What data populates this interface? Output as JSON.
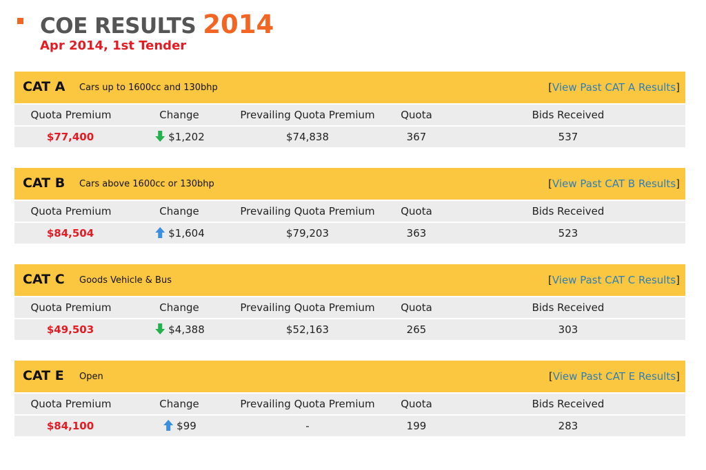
{
  "header": {
    "title_main": "COE RESULTS",
    "title_year": "2014",
    "subtitle": "Apr 2014, 1st Tender"
  },
  "colors": {
    "accent_orange": "#f26522",
    "premium_red": "#e31b23",
    "band_yellow": "#fbc640",
    "row_grey": "#ececec",
    "link_blue": "#2e7fb8",
    "arrow_down_green": "#22b24c",
    "arrow_up_blue": "#3a8fe0"
  },
  "columns": [
    "Quota Premium",
    "Change",
    "Prevailing Quota Premium",
    "Quota",
    "Bids Received"
  ],
  "categories": [
    {
      "name": "CAT A",
      "description": "Cars up to 1600cc and 130bhp",
      "link_open": "[",
      "link_text": "View Past CAT A Results",
      "link_close": "]",
      "quota_premium": "$77,400",
      "change_direction": "down",
      "change_icon": "arrow-down-icon",
      "change": "$1,202",
      "prevailing_quota_premium": "$74,838",
      "quota": "367",
      "bids_received": "537"
    },
    {
      "name": "CAT B",
      "description": "Cars above 1600cc or 130bhp",
      "link_open": "[",
      "link_text": "View Past CAT B Results",
      "link_close": "]",
      "quota_premium": "$84,504",
      "change_direction": "up",
      "change_icon": "arrow-up-icon",
      "change": "$1,604",
      "prevailing_quota_premium": "$79,203",
      "quota": "363",
      "bids_received": "523"
    },
    {
      "name": "CAT C",
      "description": "Goods Vehicle & Bus",
      "link_open": "[",
      "link_text": "View Past CAT C Results",
      "link_close": "]",
      "quota_premium": "$49,503",
      "change_direction": "down",
      "change_icon": "arrow-down-icon",
      "change": "$4,388",
      "prevailing_quota_premium": "$52,163",
      "quota": "265",
      "bids_received": "303"
    },
    {
      "name": "CAT E",
      "description": "Open",
      "link_open": "[",
      "link_text": "View Past CAT E Results",
      "link_close": "]",
      "quota_premium": "$84,100",
      "change_direction": "up",
      "change_icon": "arrow-up-icon",
      "change": "$99",
      "prevailing_quota_premium": "-",
      "quota": "199",
      "bids_received": "283"
    }
  ]
}
